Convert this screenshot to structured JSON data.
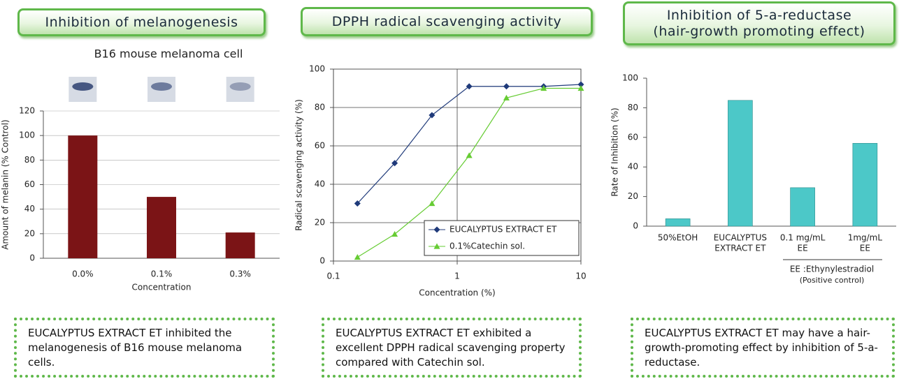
{
  "chart_data": [
    {
      "type": "bar",
      "title": [
        "Inhibition of melanogenesis"
      ],
      "subtitle": "B16 mouse melanoma cell",
      "categories": [
        "0.0%",
        "0.1%",
        "0.3%"
      ],
      "values": [
        100,
        50,
        21
      ],
      "color": "#7b1416",
      "ylim": [
        0,
        120
      ],
      "yticks": [
        0,
        20,
        40,
        60,
        80,
        100,
        120
      ],
      "grid": true,
      "ylabel": "Amount of melanin (% Control)",
      "xlabel": "Concentration",
      "note": "EUCALYPTUS EXTRACT ET inhibited the melanogenesis of B16 mouse melanoma cells."
    },
    {
      "type": "line",
      "title": [
        "DPPH radical scavenging activity"
      ],
      "x": [
        0.15625,
        0.3125,
        0.625,
        1.25,
        2.5,
        5,
        10
      ],
      "xscale": "log",
      "series": [
        {
          "name": "EUCALYPTUS EXTRACT ET",
          "color": "#1f3a7a",
          "marker": "diamond",
          "values": [
            30,
            51,
            76,
            91,
            91,
            91,
            92
          ]
        },
        {
          "name": "0.1%Catechin sol.",
          "color": "#66cc33",
          "marker": "triangle",
          "values": [
            2,
            14,
            30,
            55,
            85,
            90,
            90
          ]
        }
      ],
      "xlim": [
        0.1,
        10
      ],
      "xticks": [
        0.1,
        1,
        10
      ],
      "ylim": [
        0,
        100
      ],
      "yticks": [
        0,
        20,
        40,
        60,
        80,
        100
      ],
      "grid": true,
      "legend": "lower-right",
      "ylabel": "Radical scavenging activity (%)",
      "xlabel": "Concentration (%)",
      "note": "EUCALYPTUS EXTRACT ET exhibited a excellent DPPH radical scavenging property compared with Catechin sol."
    },
    {
      "type": "bar",
      "title": [
        "Inhibition of 5-a-reductase",
        "(hair-growth promoting effect)"
      ],
      "categories": [
        [
          "50%EtOH"
        ],
        [
          "EUCALYPTUS",
          "EXTRACT ET"
        ],
        [
          "0.1 mg/mL",
          "EE"
        ],
        [
          "1mg/mL",
          "EE"
        ]
      ],
      "values": [
        5,
        85,
        26,
        56
      ],
      "color": "#4cc8c8",
      "ylim": [
        0,
        100
      ],
      "yticks": [
        0,
        20,
        40,
        60,
        80,
        100
      ],
      "grid": false,
      "ylabel": "Rate of Inhibition (%)",
      "footnote": [
        "EE :Ethynylestradiol",
        "(Positive control)"
      ],
      "note": "EUCALYPTUS EXTRACT ET may have a hair-growth-promoting effect by inhibition of 5-a-reductase."
    }
  ]
}
